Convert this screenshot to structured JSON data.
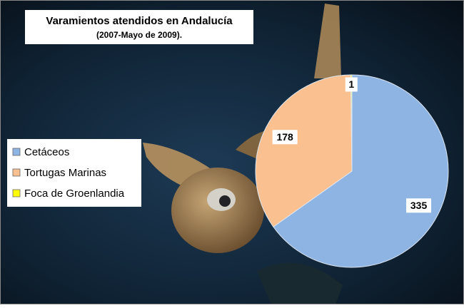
{
  "chart_data": {
    "type": "pie",
    "title": "Varamientos atendidos en Andalucía",
    "subtitle": "(2007-Mayo  de  2009).",
    "categories": [
      "Cetáceos",
      "Tortugas Marinas",
      "Foca de Groenlandia"
    ],
    "values": [
      335,
      178,
      1
    ],
    "colors": [
      "#8eb4e3",
      "#fac090",
      "#ffff00"
    ],
    "legend": "left"
  }
}
